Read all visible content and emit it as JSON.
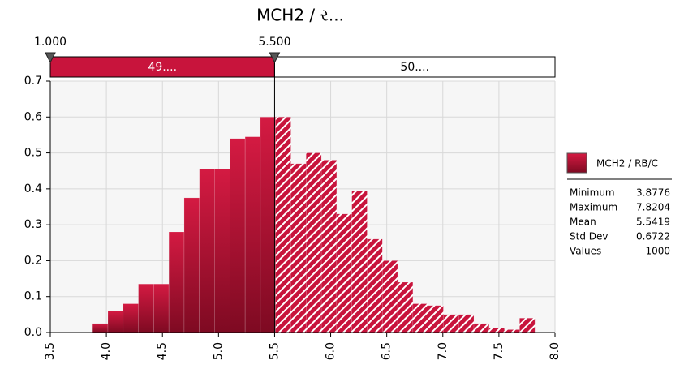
{
  "chart_data": {
    "type": "histogram",
    "title": "MCH2 / ર...",
    "bins": [
      3.8776,
      4.0136,
      4.1495,
      4.2855,
      4.4214,
      4.5574,
      4.6934,
      4.8293,
      4.9653,
      5.1012,
      5.2372,
      5.3732,
      5.5091,
      5.6451,
      5.781,
      5.917,
      6.053,
      6.1889,
      6.3249,
      6.4608,
      6.5968,
      6.7328,
      6.8687,
      7.0047,
      7.1406,
      7.2766,
      7.4126,
      7.5485,
      7.6845,
      7.8204
    ],
    "values": [
      0.025,
      0.06,
      0.08,
      0.135,
      0.135,
      0.28,
      0.375,
      0.455,
      0.455,
      0.54,
      0.545,
      0.6,
      0.6,
      0.47,
      0.5,
      0.48,
      0.33,
      0.395,
      0.26,
      0.2,
      0.14,
      0.08,
      0.075,
      0.05,
      0.05,
      0.025,
      0.012,
      0.008,
      0.04
    ],
    "color": "#c8143c",
    "xlim": [
      3.5,
      8.0
    ],
    "xticks": [
      3.5,
      {
        "value": 4,
        "label": "4.0"
      },
      4.5,
      {
        "value": 5,
        "label": "5.0"
      },
      5.5,
      {
        "value": 6,
        "label": "6.0"
      },
      6.5,
      {
        "value": 7,
        "label": "7.0"
      },
      7.5,
      {
        "value": 8,
        "label": "8.0"
      }
    ],
    "ylim": [
      0,
      0.7
    ],
    "yticks": [
      {
        "value": 0,
        "label": "0.0"
      },
      0.1,
      0.2,
      0.3,
      0.4,
      0.5,
      0.6,
      0.7
    ],
    "grid": true,
    "delimiters": [
      {
        "value": 1,
        "label": "1.000"
      },
      {
        "value": 5.5,
        "label": "5.500"
      }
    ],
    "region_labels": [
      "49....",
      "50...."
    ],
    "legend": {
      "name": "MCH2 / RB/C",
      "stats": [
        [
          "Minimum",
          3.8776
        ],
        [
          "Maximum",
          7.8204
        ],
        [
          "Mean",
          5.5419
        ],
        [
          "Std Dev",
          0.6722
        ],
        [
          "Values",
          1000
        ]
      ]
    }
  }
}
